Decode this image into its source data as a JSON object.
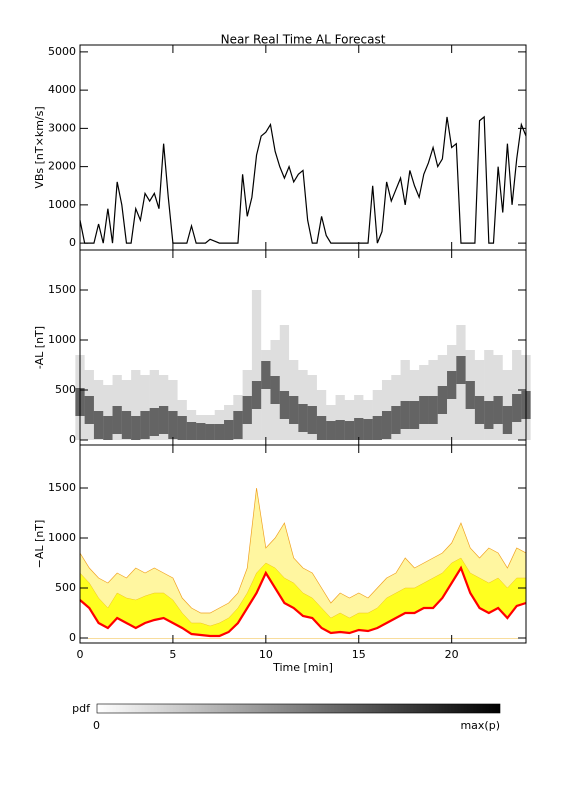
{
  "title": "Near Real Time AL Forecast",
  "chart_data": [
    {
      "type": "line",
      "y_label": "VBs [nT×km/s]",
      "color": "#000000",
      "x": [
        0,
        0.25,
        0.5,
        0.75,
        1,
        1.25,
        1.5,
        1.75,
        2,
        2.25,
        2.5,
        2.75,
        3,
        3.25,
        3.5,
        3.75,
        4,
        4.25,
        4.5,
        4.75,
        5,
        5.25,
        5.5,
        5.75,
        6,
        6.25,
        6.5,
        6.75,
        7,
        7.25,
        7.5,
        7.75,
        8,
        8.25,
        8.5,
        8.75,
        9,
        9.25,
        9.5,
        9.75,
        10,
        10.25,
        10.5,
        10.75,
        11,
        11.25,
        11.5,
        11.75,
        12,
        12.25,
        12.5,
        12.75,
        13,
        13.25,
        13.5,
        13.75,
        14,
        14.25,
        14.5,
        14.75,
        15,
        15.25,
        15.5,
        15.75,
        16,
        16.25,
        16.5,
        16.75,
        17,
        17.25,
        17.5,
        17.75,
        18,
        18.25,
        18.5,
        18.75,
        19,
        19.25,
        19.5,
        19.75,
        20,
        20.25,
        20.5,
        20.75,
        21,
        21.25,
        21.5,
        21.75,
        22,
        22.25,
        22.5,
        22.75,
        23,
        23.25,
        23.5,
        23.75,
        24
      ],
      "values": [
        600,
        0,
        0,
        0,
        500,
        0,
        900,
        0,
        1600,
        1000,
        0,
        0,
        900,
        600,
        1300,
        1100,
        1300,
        900,
        2600,
        1200,
        0,
        0,
        0,
        0,
        450,
        0,
        0,
        0,
        100,
        50,
        0,
        0,
        0,
        0,
        0,
        1800,
        700,
        1200,
        2300,
        2800,
        2900,
        3100,
        2400,
        2000,
        1700,
        2000,
        1600,
        1800,
        1900,
        600,
        0,
        0,
        700,
        200,
        0,
        0,
        0,
        0,
        0,
        0,
        0,
        0,
        0,
        1500,
        0,
        300,
        1600,
        1100,
        1400,
        1700,
        1000,
        1900,
        1500,
        1200,
        1800,
        2100,
        2500,
        2000,
        2200,
        3300,
        2500,
        2600,
        0,
        0,
        0,
        0,
        3200,
        3300,
        0,
        0,
        2000,
        800,
        2600,
        1000,
        2200,
        3100,
        2800
      ],
      "xlim": [
        0,
        24
      ],
      "xticks": [
        0,
        5,
        10,
        15,
        20
      ],
      "show_xtick_labels": false,
      "ylim": [
        -180,
        5180
      ],
      "yticks": [
        0,
        1000,
        2000,
        3000,
        4000,
        5000
      ]
    },
    {
      "type": "density",
      "y_label": "-AL [nT]",
      "x": [
        0,
        0.5,
        1,
        1.5,
        2,
        2.5,
        3,
        3.5,
        4,
        4.5,
        5,
        5.5,
        6,
        6.5,
        7,
        7.5,
        8,
        8.5,
        9,
        9.5,
        10,
        10.5,
        11,
        11.5,
        12,
        12.5,
        13,
        13.5,
        14,
        14.5,
        15,
        15.5,
        16,
        16.5,
        17,
        17.5,
        18,
        18.5,
        19,
        19.5,
        20,
        20.5,
        21,
        21.5,
        22,
        22.5,
        23,
        23.5,
        24
      ],
      "series": [
        {
          "color": "#000000",
          "values": [
            850,
            700,
            600,
            550,
            650,
            600,
            700,
            650,
            700,
            650,
            600,
            400,
            300,
            250,
            250,
            300,
            350,
            450,
            700,
            1500,
            900,
            1000,
            1150,
            800,
            700,
            650,
            500,
            350,
            450,
            400,
            450,
            400,
            500,
            600,
            650,
            800,
            700,
            750,
            800,
            850,
            950,
            1150,
            900,
            800,
            900,
            850,
            700,
            900,
            850
          ]
        },
        {
          "color": "#000000",
          "values": [
            380,
            300,
            150,
            100,
            200,
            150,
            100,
            150,
            180,
            200,
            150,
            100,
            40,
            30,
            20,
            20,
            60,
            150,
            300,
            450,
            650,
            500,
            350,
            300,
            220,
            200,
            100,
            50,
            60,
            50,
            80,
            70,
            100,
            150,
            200,
            250,
            250,
            300,
            300,
            400,
            550,
            700,
            450,
            300,
            250,
            300,
            200,
            320,
            350
          ]
        }
      ],
      "xlim": [
        0,
        24
      ],
      "xticks": [
        0,
        5,
        10,
        15,
        20
      ],
      "show_xtick_labels": false,
      "ylim": [
        -50,
        1900
      ],
      "yticks": [
        0,
        500,
        1000,
        1500
      ]
    },
    {
      "type": "band",
      "y_label": "−AL [nT]",
      "x_label": "Time [min]",
      "x": [
        0,
        0.5,
        1,
        1.5,
        2,
        2.5,
        3,
        3.5,
        4,
        4.5,
        5,
        5.5,
        6,
        6.5,
        7,
        7.5,
        8,
        8.5,
        9,
        9.5,
        10,
        10.5,
        11,
        11.5,
        12,
        12.5,
        13,
        13.5,
        14,
        14.5,
        15,
        15.5,
        16,
        16.5,
        17,
        17.5,
        18,
        18.5,
        19,
        19.5,
        20,
        20.5,
        21,
        21.5,
        22,
        22.5,
        23,
        23.5,
        24
      ],
      "series": [
        {
          "color": "#fff6a0",
          "values": [
            850,
            700,
            600,
            550,
            650,
            600,
            700,
            650,
            700,
            650,
            600,
            400,
            300,
            250,
            250,
            300,
            350,
            450,
            700,
            1500,
            900,
            1000,
            1150,
            800,
            700,
            650,
            500,
            350,
            450,
            400,
            450,
            400,
            500,
            600,
            650,
            800,
            700,
            750,
            800,
            850,
            950,
            1150,
            900,
            800,
            900,
            850,
            700,
            900,
            850
          ]
        },
        {
          "color": "#ffff20",
          "values": [
            650,
            550,
            400,
            300,
            450,
            400,
            380,
            420,
            450,
            450,
            380,
            250,
            150,
            150,
            120,
            150,
            200,
            300,
            450,
            650,
            750,
            700,
            600,
            550,
            450,
            400,
            300,
            200,
            250,
            200,
            250,
            250,
            300,
            400,
            450,
            500,
            500,
            550,
            600,
            650,
            750,
            800,
            650,
            600,
            550,
            600,
            500,
            600,
            600
          ]
        },
        {
          "color": "#ff0000",
          "values": [
            380,
            300,
            150,
            100,
            200,
            150,
            100,
            150,
            180,
            200,
            150,
            100,
            40,
            30,
            20,
            20,
            60,
            150,
            300,
            450,
            650,
            500,
            350,
            300,
            220,
            200,
            100,
            50,
            60,
            50,
            80,
            70,
            100,
            150,
            200,
            250,
            250,
            300,
            300,
            400,
            550,
            700,
            450,
            300,
            250,
            300,
            200,
            320,
            350
          ]
        }
      ],
      "xlim": [
        0,
        24
      ],
      "xticks": [
        0,
        5,
        10,
        15,
        20
      ],
      "show_xtick_labels": true,
      "ylim": [
        -50,
        1930
      ],
      "yticks": [
        0,
        500,
        1000,
        1500
      ]
    }
  ],
  "colorbar": {
    "label": "pdf",
    "min": 0,
    "max_label": "max(p)"
  }
}
